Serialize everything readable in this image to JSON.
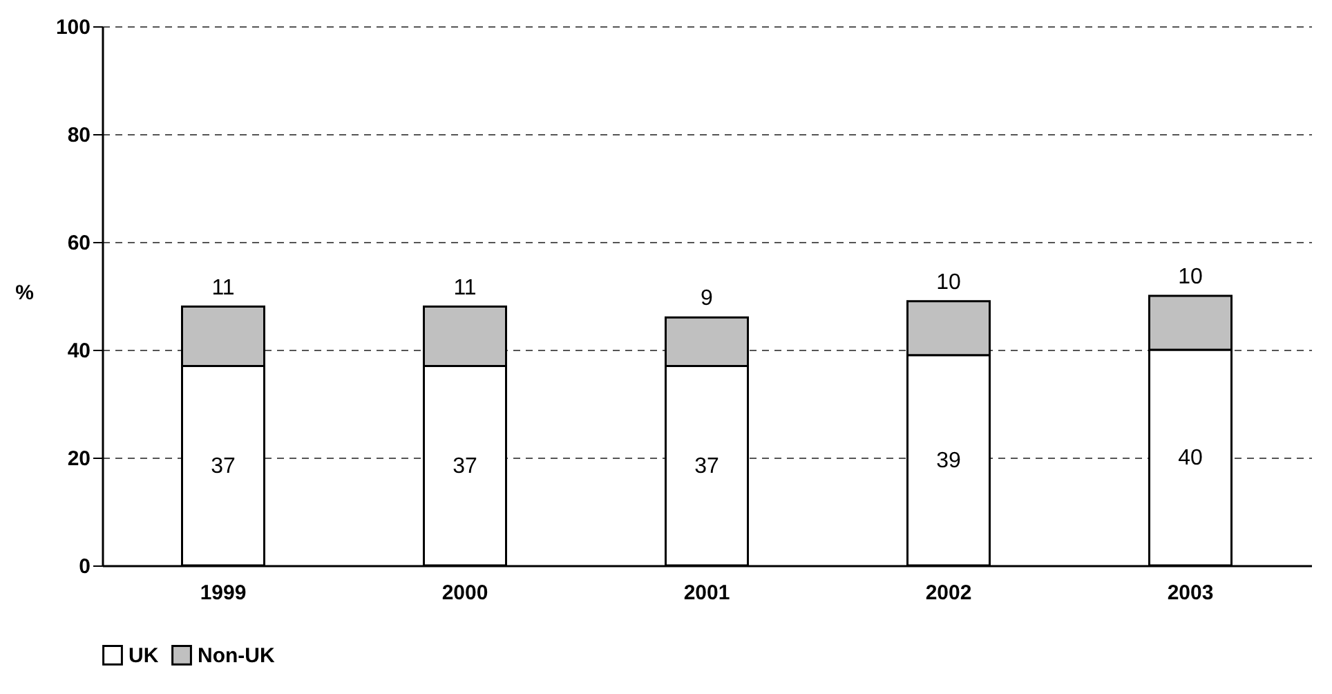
{
  "chart_data": {
    "type": "bar",
    "stacked": true,
    "ylabel": "%",
    "categories": [
      "1999",
      "2000",
      "2001",
      "2002",
      "2003"
    ],
    "series": [
      {
        "name": "UK",
        "color": "#ffffff",
        "values": [
          37,
          37,
          37,
          39,
          40
        ]
      },
      {
        "name": "Non-UK",
        "color": "#c0c0c0",
        "values": [
          11,
          11,
          9,
          10,
          10
        ]
      }
    ],
    "ylim": [
      0,
      100
    ],
    "yticks": [
      0,
      20,
      40,
      60,
      80,
      100
    ],
    "grid": "y",
    "data_labels": true,
    "legend": "bottom"
  }
}
